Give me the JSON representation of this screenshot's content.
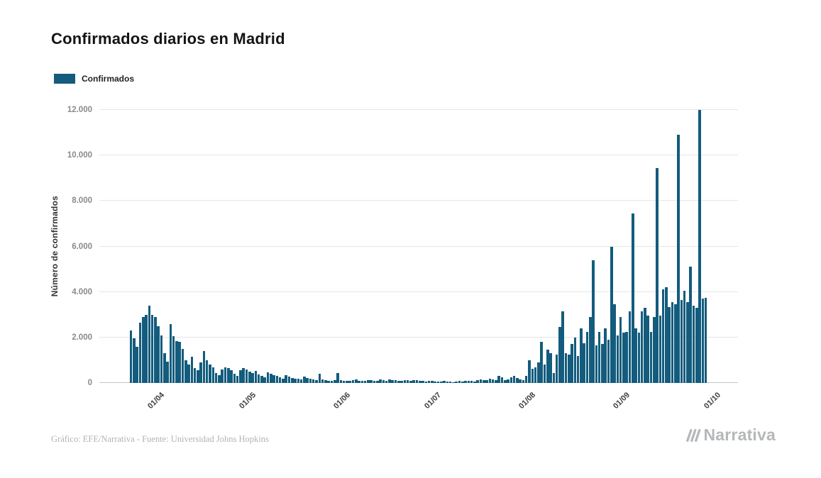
{
  "footer": {
    "caption": "Gráfico: EFE/Narrativa - Fuente: Universidad Johns Hopkins",
    "brand": "Narrativa"
  },
  "chart_data": {
    "type": "bar",
    "title": "Confirmados diarios en Madrid",
    "xlabel": "",
    "ylabel": "Número de confirmados",
    "legend": [
      "Confirmados"
    ],
    "bar_color": "#135c7d",
    "grid": "horizontal",
    "legend_position": "top-left",
    "ylim": [
      0,
      12000
    ],
    "yticks": [
      {
        "value": 0,
        "label": "0"
      },
      {
        "value": 2000,
        "label": "2.000"
      },
      {
        "value": 4000,
        "label": "4.000"
      },
      {
        "value": 6000,
        "label": "6.000"
      },
      {
        "value": 8000,
        "label": "8.000"
      },
      {
        "value": 10000,
        "label": "10.000"
      },
      {
        "value": 12000,
        "label": "12.000"
      }
    ],
    "xticks": [
      {
        "label": "01/04",
        "day": 20
      },
      {
        "label": "01/05",
        "day": 50
      },
      {
        "label": "01/06",
        "day": 81
      },
      {
        "label": "01/07",
        "day": 111
      },
      {
        "label": "01/08",
        "day": 142
      },
      {
        "label": "01/09",
        "day": 173
      },
      {
        "label": "01/10",
        "day": 203
      }
    ],
    "domain_days": 210,
    "first_day_offset": 10,
    "values": [
      2300,
      1950,
      1600,
      2650,
      2900,
      3000,
      3400,
      3000,
      2900,
      2500,
      2100,
      1300,
      950,
      2600,
      2050,
      1850,
      1800,
      1500,
      1000,
      800,
      1150,
      650,
      550,
      900,
      1400,
      1000,
      800,
      700,
      450,
      350,
      600,
      700,
      650,
      550,
      400,
      300,
      550,
      650,
      600,
      500,
      450,
      520,
      380,
      300,
      250,
      480,
      400,
      350,
      300,
      250,
      200,
      350,
      280,
      230,
      200,
      180,
      150,
      280,
      220,
      180,
      150,
      130,
      400,
      150,
      120,
      100,
      90,
      130,
      450,
      120,
      100,
      90,
      80,
      130,
      150,
      100,
      90,
      80,
      120,
      140,
      100,
      90,
      150,
      130,
      100,
      160,
      140,
      120,
      100,
      80,
      130,
      110,
      90,
      140,
      120,
      100,
      80,
      60,
      100,
      80,
      70,
      60,
      50,
      80,
      60,
      50,
      40,
      70,
      90,
      60,
      80,
      100,
      80,
      60,
      130,
      160,
      110,
      140,
      190,
      160,
      110,
      310,
      260,
      110,
      160,
      260,
      310,
      210,
      160,
      110,
      300,
      1000,
      620,
      680,
      900,
      1800,
      800,
      1450,
      1300,
      450,
      1250,
      2450,
      3150,
      1300,
      1250,
      1700,
      2000,
      1200,
      2400,
      1750,
      2250,
      2900,
      5400,
      1650,
      2250,
      1700,
      2400,
      1900,
      6000,
      3450,
      2100,
      2900,
      2200,
      2250,
      3150,
      7450,
      2400,
      2200,
      3150,
      3300,
      2950,
      2250,
      2900,
      9450,
      2950,
      4100,
      4200,
      3350,
      3550,
      3450,
      10900,
      3650,
      4050,
      3550,
      5100,
      3400,
      3300,
      12000,
      3700,
      3750
    ]
  }
}
